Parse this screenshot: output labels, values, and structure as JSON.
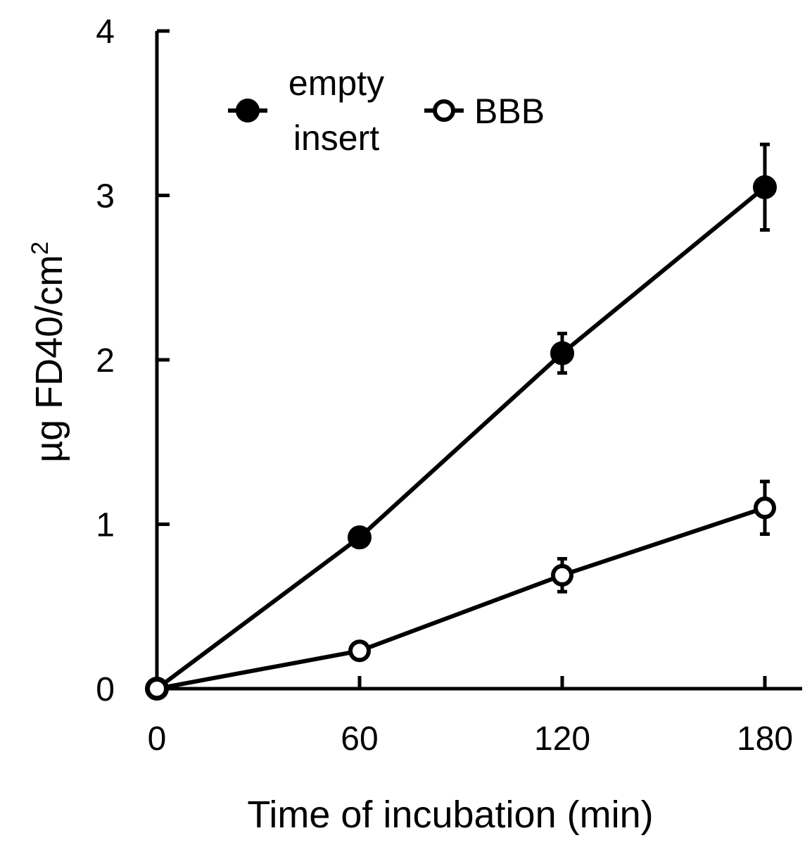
{
  "chart_data": {
    "type": "line",
    "title": "",
    "xlabel": "Time of incubation (min)",
    "ylabel": "µg FD40/cm",
    "ylabel_superscript": "2",
    "x": [
      0,
      60,
      120,
      180
    ],
    "x_ticks": [
      "0",
      "60",
      "120",
      "180"
    ],
    "y_ticks": [
      "0",
      "1",
      "2",
      "3",
      "4"
    ],
    "xlim": [
      0,
      190
    ],
    "ylim": [
      0,
      4
    ],
    "grid": false,
    "legend_position": "top-left",
    "series": [
      {
        "name": "empty insert",
        "name_lines": [
          "empty",
          "insert"
        ],
        "marker": "filled-circle",
        "color": "#000000",
        "values": [
          0,
          0.92,
          2.04,
          3.05
        ],
        "errors": [
          0,
          0.05,
          0.12,
          0.26
        ]
      },
      {
        "name": "BBB",
        "name_lines": [
          "BBB"
        ],
        "marker": "open-circle",
        "color": "#000000",
        "values": [
          0,
          0.23,
          0.69,
          1.1
        ],
        "errors": [
          0,
          0.03,
          0.1,
          0.16
        ]
      }
    ]
  }
}
